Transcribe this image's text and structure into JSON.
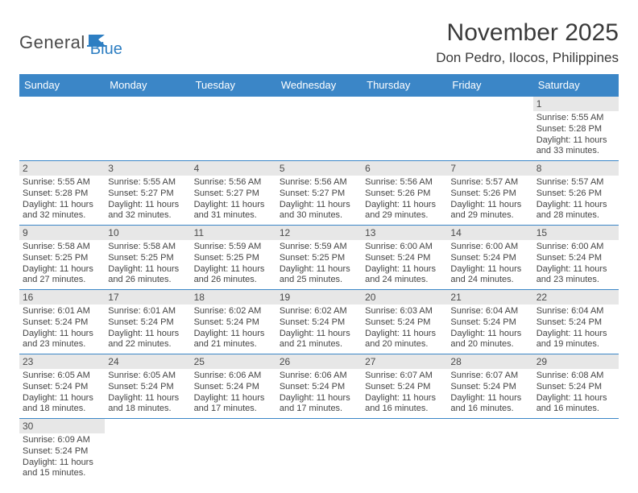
{
  "logo": {
    "word1": "General",
    "word2": "Blue"
  },
  "title": "November 2025",
  "location": "Don Pedro, Ilocos, Philippines",
  "colors": {
    "header_bg": "#3b86c7",
    "header_text": "#ffffff",
    "daynum_bg": "#e7e7e7",
    "border": "#3b86c7",
    "body_text": "#444444",
    "title_text": "#3a3a3a",
    "logo_gray": "#4a4a4a",
    "logo_blue": "#2d7ec2",
    "page_bg": "#ffffff"
  },
  "typography": {
    "title_fontsize": 30,
    "location_fontsize": 17,
    "dayheader_fontsize": 13,
    "daynum_fontsize": 12,
    "cell_fontsize": 11
  },
  "day_names": [
    "Sunday",
    "Monday",
    "Tuesday",
    "Wednesday",
    "Thursday",
    "Friday",
    "Saturday"
  ],
  "weeks": [
    [
      null,
      null,
      null,
      null,
      null,
      null,
      {
        "n": "1",
        "sr": "Sunrise: 5:55 AM",
        "ss": "Sunset: 5:28 PM",
        "d1": "Daylight: 11 hours",
        "d2": "and 33 minutes."
      }
    ],
    [
      {
        "n": "2",
        "sr": "Sunrise: 5:55 AM",
        "ss": "Sunset: 5:28 PM",
        "d1": "Daylight: 11 hours",
        "d2": "and 32 minutes."
      },
      {
        "n": "3",
        "sr": "Sunrise: 5:55 AM",
        "ss": "Sunset: 5:27 PM",
        "d1": "Daylight: 11 hours",
        "d2": "and 32 minutes."
      },
      {
        "n": "4",
        "sr": "Sunrise: 5:56 AM",
        "ss": "Sunset: 5:27 PM",
        "d1": "Daylight: 11 hours",
        "d2": "and 31 minutes."
      },
      {
        "n": "5",
        "sr": "Sunrise: 5:56 AM",
        "ss": "Sunset: 5:27 PM",
        "d1": "Daylight: 11 hours",
        "d2": "and 30 minutes."
      },
      {
        "n": "6",
        "sr": "Sunrise: 5:56 AM",
        "ss": "Sunset: 5:26 PM",
        "d1": "Daylight: 11 hours",
        "d2": "and 29 minutes."
      },
      {
        "n": "7",
        "sr": "Sunrise: 5:57 AM",
        "ss": "Sunset: 5:26 PM",
        "d1": "Daylight: 11 hours",
        "d2": "and 29 minutes."
      },
      {
        "n": "8",
        "sr": "Sunrise: 5:57 AM",
        "ss": "Sunset: 5:26 PM",
        "d1": "Daylight: 11 hours",
        "d2": "and 28 minutes."
      }
    ],
    [
      {
        "n": "9",
        "sr": "Sunrise: 5:58 AM",
        "ss": "Sunset: 5:25 PM",
        "d1": "Daylight: 11 hours",
        "d2": "and 27 minutes."
      },
      {
        "n": "10",
        "sr": "Sunrise: 5:58 AM",
        "ss": "Sunset: 5:25 PM",
        "d1": "Daylight: 11 hours",
        "d2": "and 26 minutes."
      },
      {
        "n": "11",
        "sr": "Sunrise: 5:59 AM",
        "ss": "Sunset: 5:25 PM",
        "d1": "Daylight: 11 hours",
        "d2": "and 26 minutes."
      },
      {
        "n": "12",
        "sr": "Sunrise: 5:59 AM",
        "ss": "Sunset: 5:25 PM",
        "d1": "Daylight: 11 hours",
        "d2": "and 25 minutes."
      },
      {
        "n": "13",
        "sr": "Sunrise: 6:00 AM",
        "ss": "Sunset: 5:24 PM",
        "d1": "Daylight: 11 hours",
        "d2": "and 24 minutes."
      },
      {
        "n": "14",
        "sr": "Sunrise: 6:00 AM",
        "ss": "Sunset: 5:24 PM",
        "d1": "Daylight: 11 hours",
        "d2": "and 24 minutes."
      },
      {
        "n": "15",
        "sr": "Sunrise: 6:00 AM",
        "ss": "Sunset: 5:24 PM",
        "d1": "Daylight: 11 hours",
        "d2": "and 23 minutes."
      }
    ],
    [
      {
        "n": "16",
        "sr": "Sunrise: 6:01 AM",
        "ss": "Sunset: 5:24 PM",
        "d1": "Daylight: 11 hours",
        "d2": "and 23 minutes."
      },
      {
        "n": "17",
        "sr": "Sunrise: 6:01 AM",
        "ss": "Sunset: 5:24 PM",
        "d1": "Daylight: 11 hours",
        "d2": "and 22 minutes."
      },
      {
        "n": "18",
        "sr": "Sunrise: 6:02 AM",
        "ss": "Sunset: 5:24 PM",
        "d1": "Daylight: 11 hours",
        "d2": "and 21 minutes."
      },
      {
        "n": "19",
        "sr": "Sunrise: 6:02 AM",
        "ss": "Sunset: 5:24 PM",
        "d1": "Daylight: 11 hours",
        "d2": "and 21 minutes."
      },
      {
        "n": "20",
        "sr": "Sunrise: 6:03 AM",
        "ss": "Sunset: 5:24 PM",
        "d1": "Daylight: 11 hours",
        "d2": "and 20 minutes."
      },
      {
        "n": "21",
        "sr": "Sunrise: 6:04 AM",
        "ss": "Sunset: 5:24 PM",
        "d1": "Daylight: 11 hours",
        "d2": "and 20 minutes."
      },
      {
        "n": "22",
        "sr": "Sunrise: 6:04 AM",
        "ss": "Sunset: 5:24 PM",
        "d1": "Daylight: 11 hours",
        "d2": "and 19 minutes."
      }
    ],
    [
      {
        "n": "23",
        "sr": "Sunrise: 6:05 AM",
        "ss": "Sunset: 5:24 PM",
        "d1": "Daylight: 11 hours",
        "d2": "and 18 minutes."
      },
      {
        "n": "24",
        "sr": "Sunrise: 6:05 AM",
        "ss": "Sunset: 5:24 PM",
        "d1": "Daylight: 11 hours",
        "d2": "and 18 minutes."
      },
      {
        "n": "25",
        "sr": "Sunrise: 6:06 AM",
        "ss": "Sunset: 5:24 PM",
        "d1": "Daylight: 11 hours",
        "d2": "and 17 minutes."
      },
      {
        "n": "26",
        "sr": "Sunrise: 6:06 AM",
        "ss": "Sunset: 5:24 PM",
        "d1": "Daylight: 11 hours",
        "d2": "and 17 minutes."
      },
      {
        "n": "27",
        "sr": "Sunrise: 6:07 AM",
        "ss": "Sunset: 5:24 PM",
        "d1": "Daylight: 11 hours",
        "d2": "and 16 minutes."
      },
      {
        "n": "28",
        "sr": "Sunrise: 6:07 AM",
        "ss": "Sunset: 5:24 PM",
        "d1": "Daylight: 11 hours",
        "d2": "and 16 minutes."
      },
      {
        "n": "29",
        "sr": "Sunrise: 6:08 AM",
        "ss": "Sunset: 5:24 PM",
        "d1": "Daylight: 11 hours",
        "d2": "and 16 minutes."
      }
    ],
    [
      {
        "n": "30",
        "sr": "Sunrise: 6:09 AM",
        "ss": "Sunset: 5:24 PM",
        "d1": "Daylight: 11 hours",
        "d2": "and 15 minutes."
      },
      null,
      null,
      null,
      null,
      null,
      null
    ]
  ]
}
